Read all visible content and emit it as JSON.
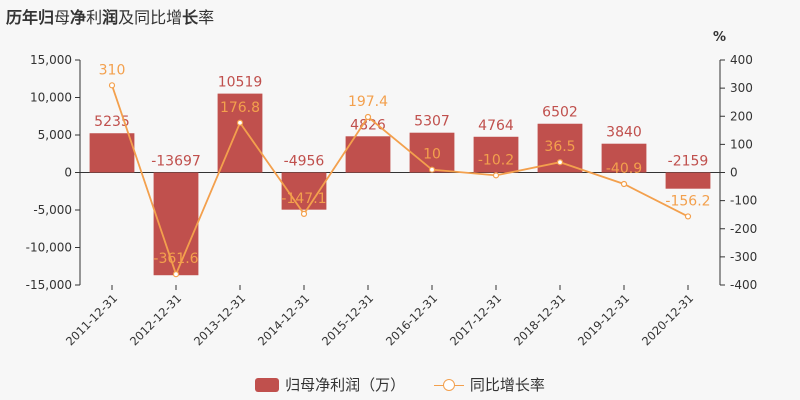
{
  "title": {
    "pre": "历年",
    "b1": "归",
    "mid1": "母",
    "b2": "净",
    "mid2": "利",
    "b3": "润",
    "mid3": "及同比增",
    "b4": "长",
    "post": "率"
  },
  "colors": {
    "bar": "#c0504d",
    "line": "#f3a04d",
    "bar_label": "#c0504d",
    "line_label": "#f3a04d"
  },
  "chart_data": {
    "type": "bar+line",
    "categories": [
      "2011-12-31",
      "2012-12-31",
      "2013-12-31",
      "2014-12-31",
      "2015-12-31",
      "2016-12-31",
      "2017-12-31",
      "2018-12-31",
      "2019-12-31",
      "2020-12-31"
    ],
    "series": [
      {
        "name": "归母净利润（万）",
        "type": "bar",
        "axis": "left",
        "values": [
          5235,
          -13697,
          10519,
          -4956,
          4826,
          5307,
          4764,
          6502,
          3840,
          -2159
        ]
      },
      {
        "name": "同比增长率",
        "type": "line",
        "axis": "right",
        "values": [
          310,
          -361.6,
          176.8,
          -147.1,
          197.4,
          10,
          -10.2,
          36.5,
          -40.9,
          -156.2
        ]
      }
    ],
    "left_axis": {
      "min": -15000,
      "max": 15000,
      "ticks": [
        15000,
        10000,
        5000,
        0,
        -5000,
        -10000,
        -15000
      ],
      "tick_labels": [
        "15,000",
        "10,000",
        "5,000",
        "0",
        "-5,000",
        "-10,000",
        "-15,000"
      ]
    },
    "right_axis": {
      "min": -400,
      "max": 400,
      "unit": "%",
      "ticks": [
        400,
        300,
        200,
        100,
        0,
        -100,
        -200,
        -300,
        -400
      ],
      "tick_labels": [
        "400",
        "300",
        "200",
        "100",
        "0",
        "-100",
        "-200",
        "-300",
        "-400"
      ]
    },
    "grid": false,
    "legend": "bottom"
  }
}
